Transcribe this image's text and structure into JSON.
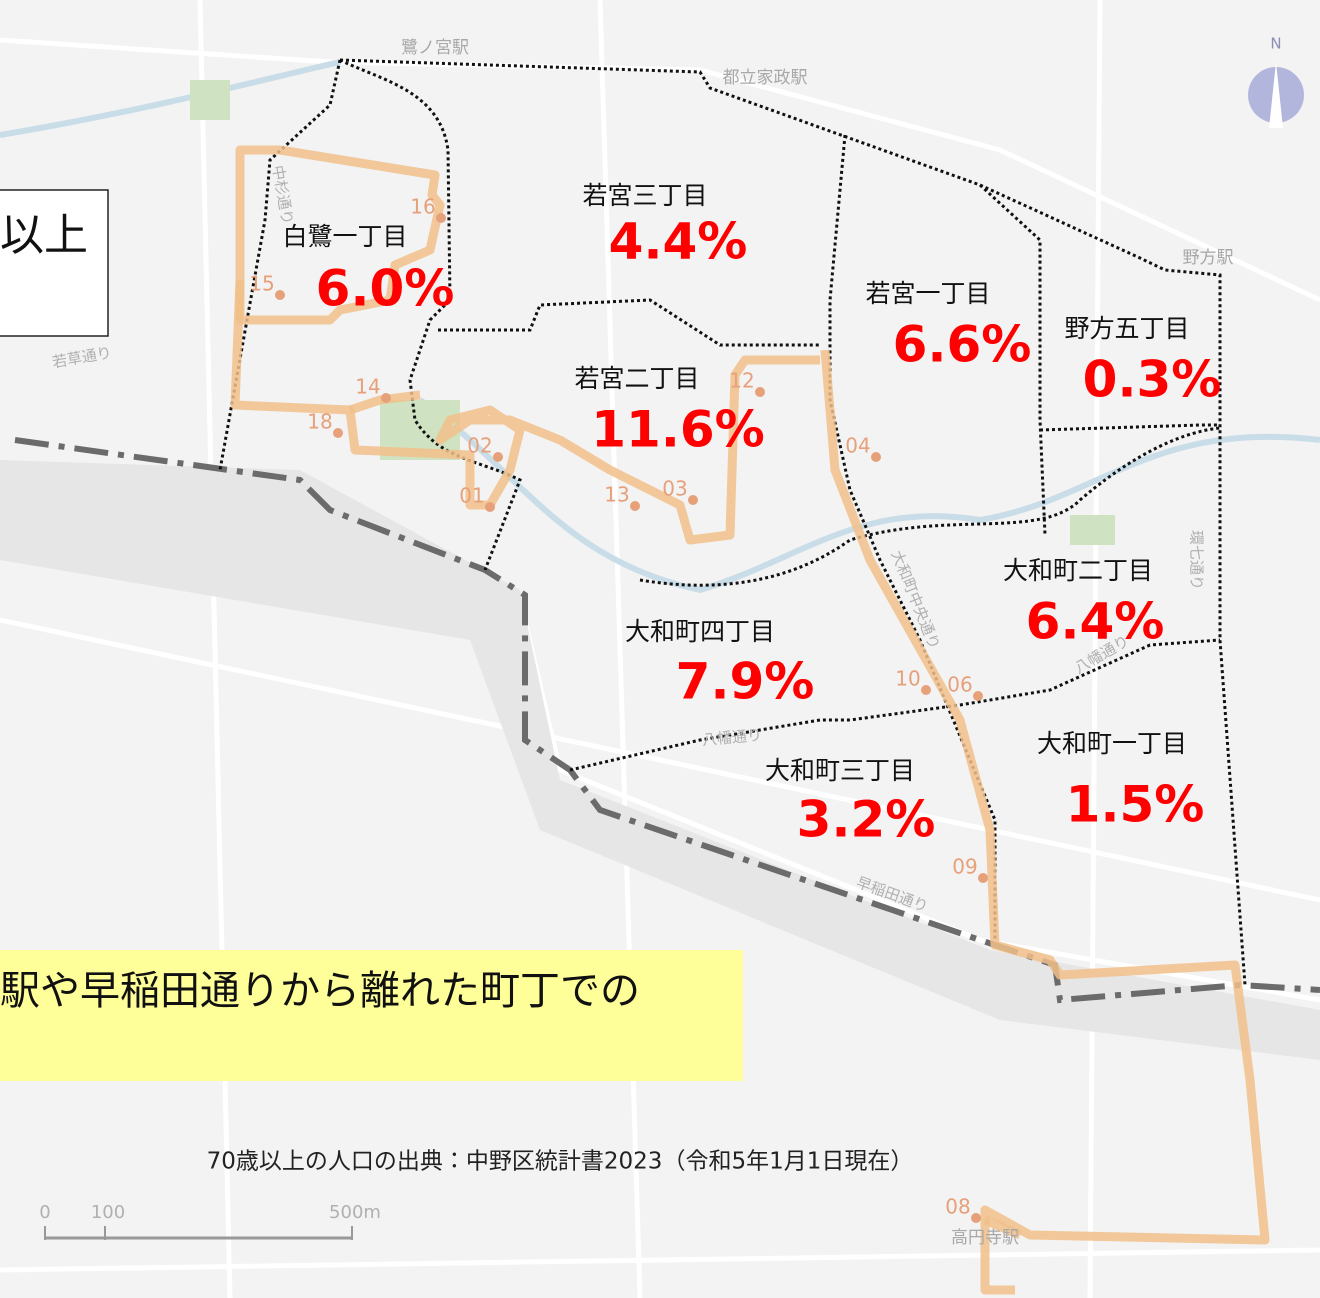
{
  "map": {
    "north": "N",
    "stations": [
      "鷺ノ宮駅",
      "都立家政駅",
      "野方駅",
      "高円寺駅"
    ],
    "roads": [
      "中杉通り",
      "若草通り",
      "大和町中央通り",
      "環七通り",
      "八幡通り",
      "八幡通り",
      "早稲田通り"
    ],
    "districts": [
      {
        "name": "白鷺一丁目",
        "rate": "6.0%"
      },
      {
        "name": "若宮三丁目",
        "rate": "4.4%"
      },
      {
        "name": "若宮一丁目",
        "rate": "6.6%"
      },
      {
        "name": "野方五丁目",
        "rate": "0.3%"
      },
      {
        "name": "若宮二丁目",
        "rate": "11.6%"
      },
      {
        "name": "大和町二丁目",
        "rate": "6.4%"
      },
      {
        "name": "大和町四丁目",
        "rate": "7.9%"
      },
      {
        "name": "大和町三丁目",
        "rate": "3.2%"
      },
      {
        "name": "大和町一丁目",
        "rate": "1.5%"
      }
    ],
    "stops": [
      "01",
      "02",
      "03",
      "04",
      "06",
      "08",
      "09",
      "10",
      "12",
      "13",
      "14",
      "15",
      "16",
      "18"
    ],
    "scale": [
      "0",
      "100",
      "500m"
    ],
    "callout_top": "以上",
    "callout_bottom": "駅や早稲田通りから離れた町丁での",
    "source": "70歳以上の人口の出典：中野区統計書2023（令和5年1月1日現在）"
  }
}
